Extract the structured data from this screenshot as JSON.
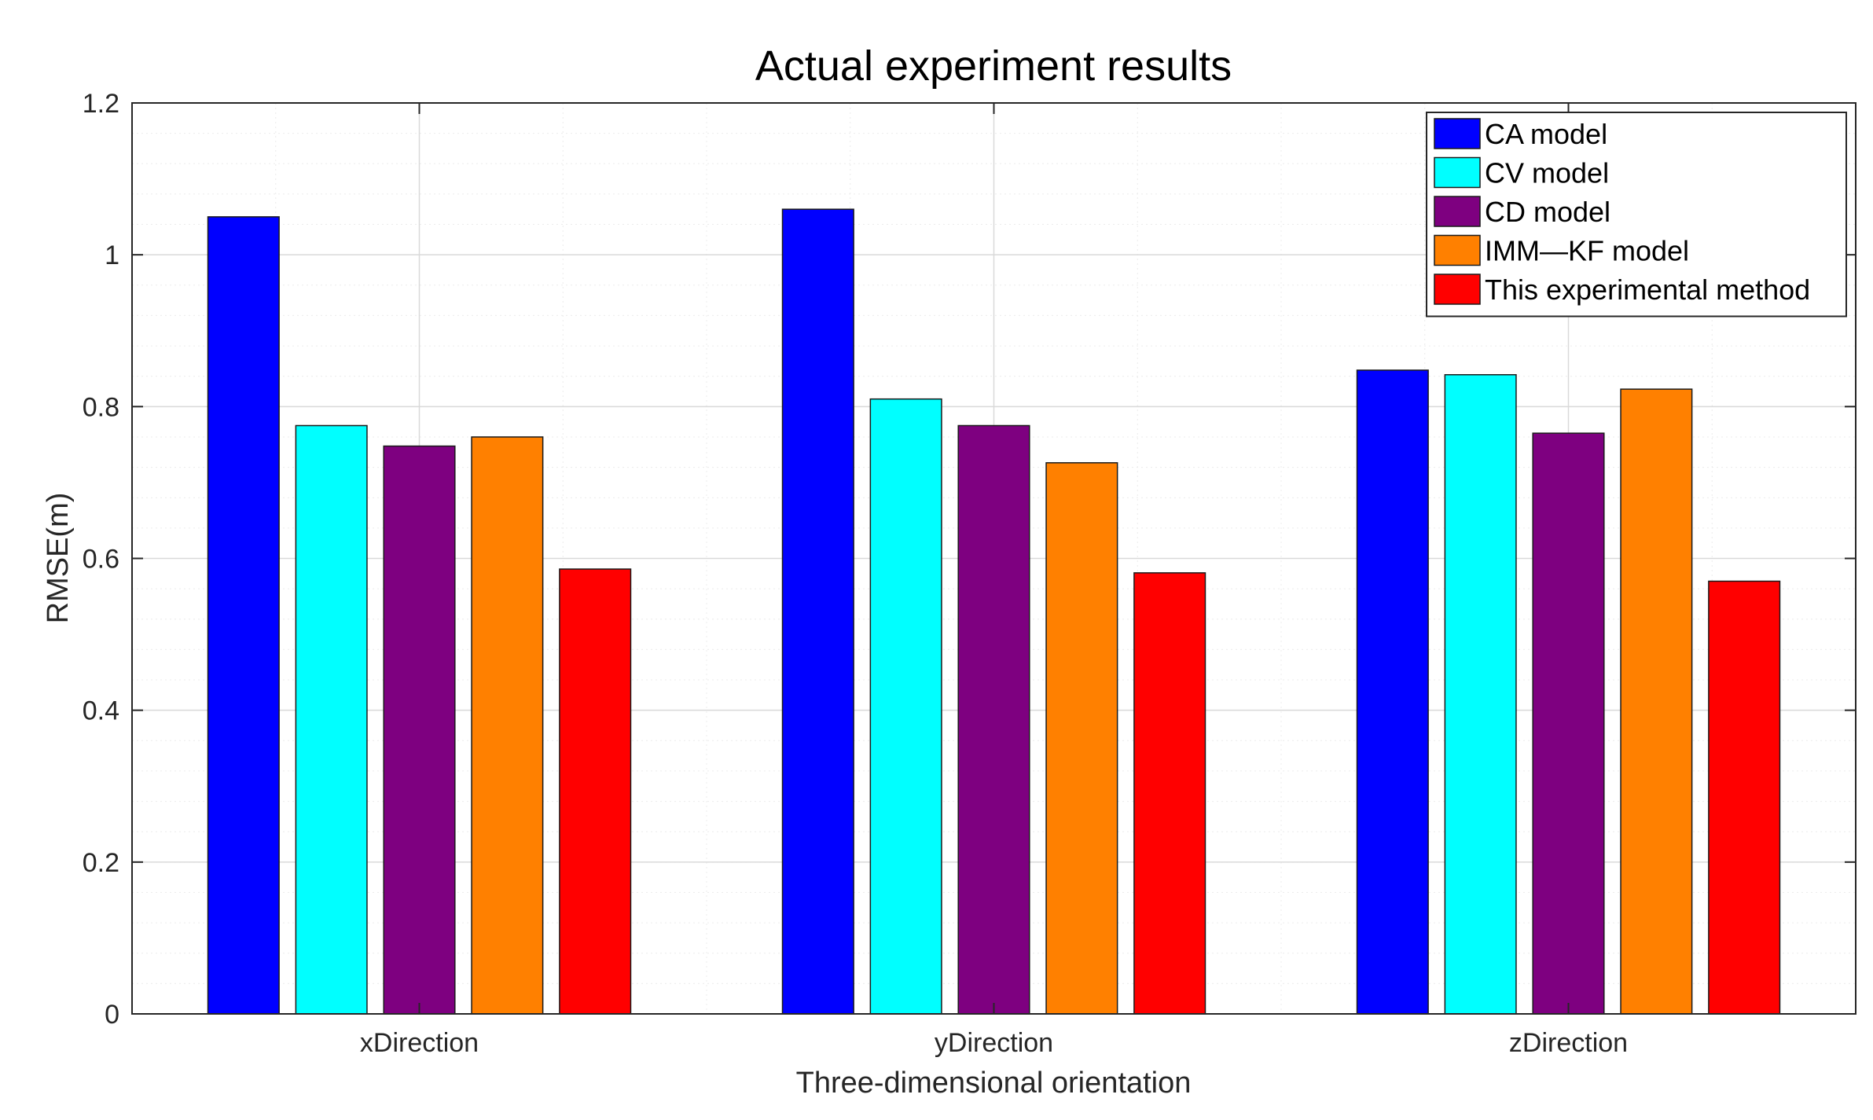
{
  "chart_data": {
    "type": "bar",
    "title": "Actual experiment results",
    "xlabel": "Three-dimensional orientation",
    "ylabel": "RMSE(m)",
    "categories": [
      "xDirection",
      "yDirection",
      "zDirection"
    ],
    "ylim": [
      0,
      1.2
    ],
    "yticks": [
      0,
      0.2,
      0.4,
      0.6,
      0.8,
      1,
      1.2
    ],
    "ytick_labels": [
      "0",
      "0.2",
      "0.4",
      "0.6",
      "0.8",
      "1",
      "1.2"
    ],
    "grid": true,
    "legend_position": "top-right",
    "series": [
      {
        "name": "CA model",
        "color": "#0000ff",
        "values": [
          1.05,
          1.06,
          0.848
        ]
      },
      {
        "name": "CV model",
        "color": "#00ffff",
        "values": [
          0.775,
          0.81,
          0.842
        ]
      },
      {
        "name": "CD model",
        "color": "#7e0080",
        "values": [
          0.748,
          0.775,
          0.765
        ]
      },
      {
        "name": "IMM—KF model",
        "color": "#ff8000",
        "values": [
          0.76,
          0.726,
          0.823
        ]
      },
      {
        "name": "This experimental method",
        "color": "#ff0000",
        "values": [
          0.586,
          0.581,
          0.57
        ]
      }
    ]
  }
}
